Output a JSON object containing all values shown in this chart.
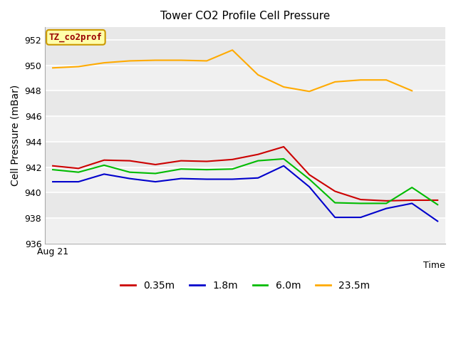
{
  "title": "Tower CO2 Profile Cell Pressure",
  "xlabel": "Time",
  "ylabel": "Cell Pressure (mBar)",
  "ylim": [
    936,
    953
  ],
  "yticks": [
    936,
    938,
    940,
    942,
    944,
    946,
    948,
    950,
    952
  ],
  "x_label_start": "Aug 21",
  "plot_bg": "#e8e8e8",
  "fig_bg": "#ffffff",
  "band_color": "#f0f0f0",
  "grid_color": "#d8d8d8",
  "annotation_text": "TZ_co2prof",
  "annotation_bg": "#ffffaa",
  "annotation_border": "#cc9900",
  "annotation_text_color": "#990000",
  "series": {
    "0.35m": {
      "color": "#cc0000",
      "y": [
        942.1,
        941.9,
        942.55,
        942.5,
        942.2,
        942.5,
        942.45,
        942.6,
        943.0,
        943.6,
        941.4,
        940.1,
        939.45,
        939.35,
        939.4,
        939.4
      ]
    },
    "1.8m": {
      "color": "#0000cc",
      "y": [
        940.85,
        940.85,
        941.45,
        941.1,
        940.85,
        941.1,
        941.05,
        941.05,
        941.15,
        942.1,
        940.45,
        938.05,
        938.05,
        938.75,
        939.15,
        937.75
      ]
    },
    "6.0m": {
      "color": "#00bb00",
      "y": [
        941.8,
        941.6,
        942.15,
        941.6,
        941.5,
        941.85,
        941.8,
        941.85,
        942.5,
        942.65,
        941.05,
        939.2,
        939.15,
        939.15,
        940.4,
        939.05
      ]
    },
    "23.5m": {
      "color": "#ffaa00",
      "y": [
        949.8,
        949.9,
        950.2,
        950.35,
        950.4,
        950.4,
        950.35,
        951.2,
        949.25,
        948.3,
        947.95,
        948.7,
        948.85,
        948.85,
        948.0,
        null
      ]
    }
  },
  "legend": [
    {
      "label": "0.35m",
      "color": "#cc0000"
    },
    {
      "label": "1.8m",
      "color": "#0000cc"
    },
    {
      "label": "6.0m",
      "color": "#00bb00"
    },
    {
      "label": "23.5m",
      "color": "#ffaa00"
    }
  ]
}
